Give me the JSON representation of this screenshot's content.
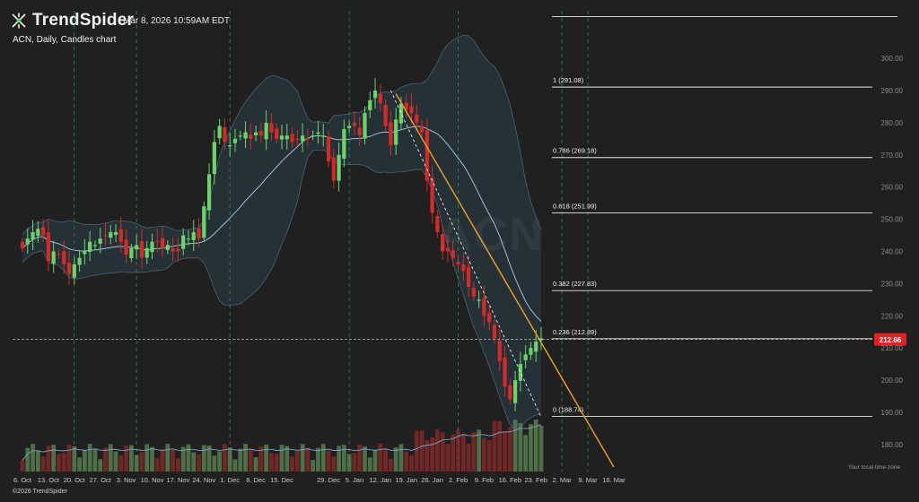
{
  "header": {
    "brand": "TrendSpider",
    "timestamp": "Mar 8, 2026 10:59AM EDT",
    "subtitle": "ACN, Daily, Candles chart",
    "watermark": "ACN",
    "footer": "©2026 TrendSpider",
    "timezone_note": "Your local time zone"
  },
  "colors": {
    "background": "#202020",
    "up": "#6ad46a",
    "down": "#d42a2a",
    "bollinger_fill": "#2a3f4a",
    "bollinger_line": "#5f8aa0",
    "fib_line": "#e6e6e6",
    "trendline": "#f2a023",
    "price_tag": "#e02424",
    "vertical_marker": "#2e8a55"
  },
  "chart_data": {
    "type": "candlestick",
    "ticker": "ACN",
    "interval": "Daily",
    "ylim": [
      175,
      310
    ],
    "y_ticks": [
      "180.00",
      "190.00",
      "200.00",
      "210.00",
      "220.00",
      "230.00",
      "240.00",
      "250.00",
      "260.00",
      "270.00",
      "280.00",
      "290.00",
      "300.00"
    ],
    "x_ticks": [
      "6. Oct",
      "13. Oct",
      "20. Oct",
      "27. Oct",
      "3. Nov",
      "10. Nov",
      "17. Nov",
      "24. Nov",
      "1. Dec",
      "8. Dec",
      "15. Dec",
      "29. Dec",
      "5. Jan",
      "12. Jan",
      "19. Jan",
      "26. Jan",
      "2. Feb",
      "9. Feb",
      "16. Feb",
      "23. Feb",
      "2. Mar",
      "9. Mar",
      "16. Mar"
    ],
    "x_tick_index": [
      0,
      5,
      10,
      15,
      20,
      25,
      30,
      35,
      40,
      45,
      50,
      59,
      64,
      69,
      74,
      79,
      84,
      89,
      94,
      99,
      104,
      109,
      114
    ],
    "last_price": "212.66",
    "last_price_value": 212.66,
    "closes": [
      241,
      244,
      246,
      247,
      245,
      237,
      240,
      239,
      236,
      233,
      236,
      238,
      240,
      243,
      242,
      244,
      245,
      246,
      246,
      243,
      239,
      241,
      242,
      238,
      241,
      243,
      243,
      241,
      242,
      240,
      240,
      245,
      244,
      246,
      244,
      254,
      264,
      274,
      279,
      274,
      273,
      275,
      276,
      277,
      275,
      277,
      276,
      280,
      277,
      275,
      276,
      276,
      274,
      275,
      276,
      275,
      276,
      277,
      276,
      268,
      262,
      270,
      278,
      279,
      279,
      276,
      283,
      287,
      290,
      286,
      279,
      273,
      281,
      286,
      284,
      283,
      280,
      277,
      262,
      252,
      246,
      240,
      240,
      238,
      236,
      234,
      229,
      226,
      225,
      220,
      218,
      213,
      206,
      198,
      194,
      200,
      205,
      208,
      210,
      212,
      213
    ],
    "fibonacci": [
      {
        "label": "1 (291.08)",
        "value": 291.08
      },
      {
        "label": "0.786 (269.18)",
        "value": 269.18
      },
      {
        "label": "0.618 (251.99)",
        "value": 251.99
      },
      {
        "label": "0.382 (227.83)",
        "value": 227.83
      },
      {
        "label": "0.236 (212.89)",
        "value": 212.89
      },
      {
        "label": "0 (188.74)",
        "value": 188.74
      }
    ],
    "top_line": 313,
    "trendline": {
      "from": {
        "i": 72,
        "y": 289
      },
      "to": {
        "i": 114,
        "y": 173
      }
    },
    "dotted_line": {
      "from": {
        "i": 71,
        "y": 290
      },
      "to": {
        "i": 100,
        "y": 188.5
      }
    },
    "vertical_markers": [
      10,
      22,
      40,
      63,
      84,
      104,
      109
    ]
  }
}
